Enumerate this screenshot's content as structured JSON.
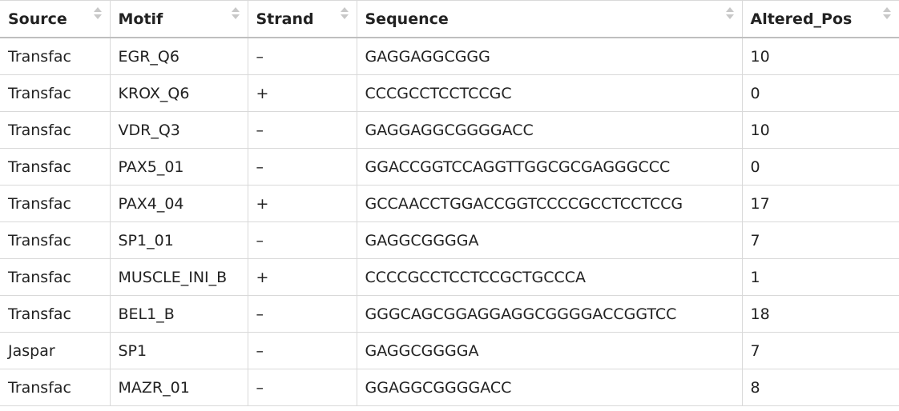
{
  "table": {
    "columns": [
      {
        "label": "Source"
      },
      {
        "label": "Motif"
      },
      {
        "label": "Strand"
      },
      {
        "label": "Sequence"
      },
      {
        "label": "Altered_Pos"
      }
    ],
    "rows": [
      [
        "Transfac",
        "EGR_Q6",
        "–",
        "GAGGAGGCGGG",
        "10"
      ],
      [
        "Transfac",
        "KROX_Q6",
        "+",
        "CCCGCCTCCTCCGC",
        "0"
      ],
      [
        "Transfac",
        "VDR_Q3",
        "–",
        "GAGGAGGCGGGGACC",
        "10"
      ],
      [
        "Transfac",
        "PAX5_01",
        "–",
        "GGACCGGTCCAGGTTGGCGCGAGGGCCC",
        "0"
      ],
      [
        "Transfac",
        "PAX4_04",
        "+",
        "GCCAACCTGGACCGGTCCCCGCCTCCTCCG",
        "17"
      ],
      [
        "Transfac",
        "SP1_01",
        "–",
        "GAGGCGGGGA",
        "7"
      ],
      [
        "Transfac",
        "MUSCLE_INI_B",
        "+",
        "CCCCGCCTCCTCCGCTGCCCA",
        "1"
      ],
      [
        "Transfac",
        "BEL1_B",
        "–",
        "GGGCAGCGGAGGAGGCGGGGACCGGTCC",
        "18"
      ],
      [
        "Jaspar",
        "SP1",
        "–",
        "GAGGCGGGGA",
        "7"
      ],
      [
        "Transfac",
        "MAZR_01",
        "–",
        "GGAGGCGGGGACC",
        "8"
      ]
    ]
  }
}
